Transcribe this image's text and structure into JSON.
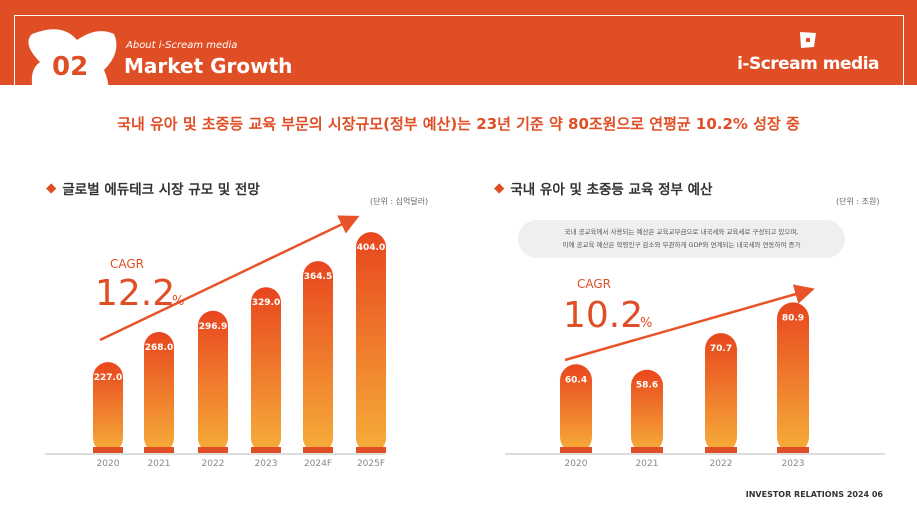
{
  "header": {
    "section_number": "02",
    "subtitle": "About i-Scream media",
    "title": "Market Growth",
    "logo": "i-Scream media"
  },
  "headline": "국내 유아 및 초중등 교육 부문의 시장규모(정부 예산)는 23년 기준 약 80조원으로 연평균 10.2% 성장 중",
  "colors": {
    "brand": "#e04e26",
    "bar_top": "#e8461e",
    "bar_bottom": "#f6ae3a"
  },
  "chart_data": [
    {
      "type": "bar",
      "title": "글로벌 에듀테크 시장 규모 및 전망",
      "unit": "(단위 : 십억달러)",
      "categories": [
        "2020",
        "2021",
        "2022",
        "2023",
        "2024F",
        "2025F"
      ],
      "values": [
        227.0,
        268.0,
        296.9,
        329.0,
        364.5,
        404.0
      ],
      "labels": [
        "227.0",
        "268.0",
        "296.9",
        "329.0",
        "364.5",
        "404.0"
      ],
      "cagr_label": "CAGR",
      "cagr_value": "12.2",
      "cagr_unit": "%"
    },
    {
      "type": "bar",
      "title": "국내 유아 및 초중등 교육 정부 예산",
      "unit": "(단위 : 조원)",
      "categories": [
        "2020",
        "2021",
        "2022",
        "2023"
      ],
      "values": [
        60.4,
        58.6,
        70.7,
        80.9
      ],
      "labels": [
        "60.4",
        "58.6",
        "70.7",
        "80.9"
      ],
      "cagr_label": "CAGR",
      "cagr_value": "10.2",
      "cagr_unit": "%",
      "note": [
        "국내 공교육에서 사용되는 예산은 교육교부금으로 내국세와 교육세로 구성되고 있으며,",
        "이에 공교육 예산은 학령인구 감소와 무관하게 GDP와 연계되는 내국세와 연동하여 증가"
      ]
    }
  ],
  "footer": "INVESTOR RELATIONS 2024  06"
}
